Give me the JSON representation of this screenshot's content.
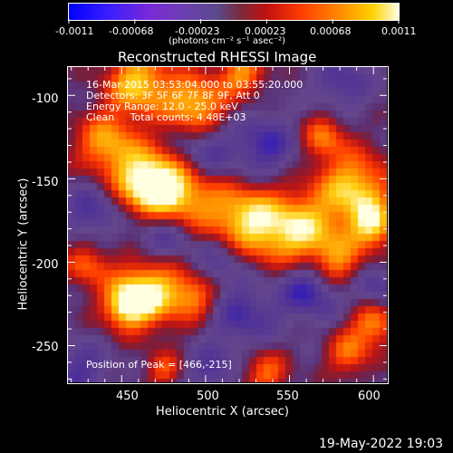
{
  "colorbar": {
    "tick_labels": [
      "-0.0011",
      "-0.00068",
      "-0.00023",
      "0.00023",
      "0.00068",
      "0.0011"
    ],
    "unit_label": "(photons cm⁻² s⁻¹ asec⁻²)"
  },
  "chart_data": {
    "type": "heatmap",
    "title": "Reconstructed RHESSI Image",
    "xlabel": "Heliocentric X (arcsec)",
    "ylabel": "Heliocentric Y (arcsec)",
    "xlim": [
      418,
      608
    ],
    "ylim": [
      -272,
      -83
    ],
    "xticks": [
      450,
      500,
      550,
      600
    ],
    "yticks": [
      -100,
      -150,
      -200,
      -250
    ],
    "zlim": [
      -0.0011,
      0.0011
    ],
    "peak": {
      "x": 466,
      "y": -215
    },
    "annotations": [
      "16-Mar-2015 03:53:04.000 to 03:55:20.000",
      "Detectors: 3F 5F 6F 7F 8F 9F, Att 0",
      "Energy Range: 12.0 - 25.0 keV",
      "Clean     Total counts: 4.48E+03"
    ],
    "peak_label": "Position of Peak = [466,-215]"
  },
  "footer": {
    "timestamp": "19-May-2022 19:03"
  }
}
